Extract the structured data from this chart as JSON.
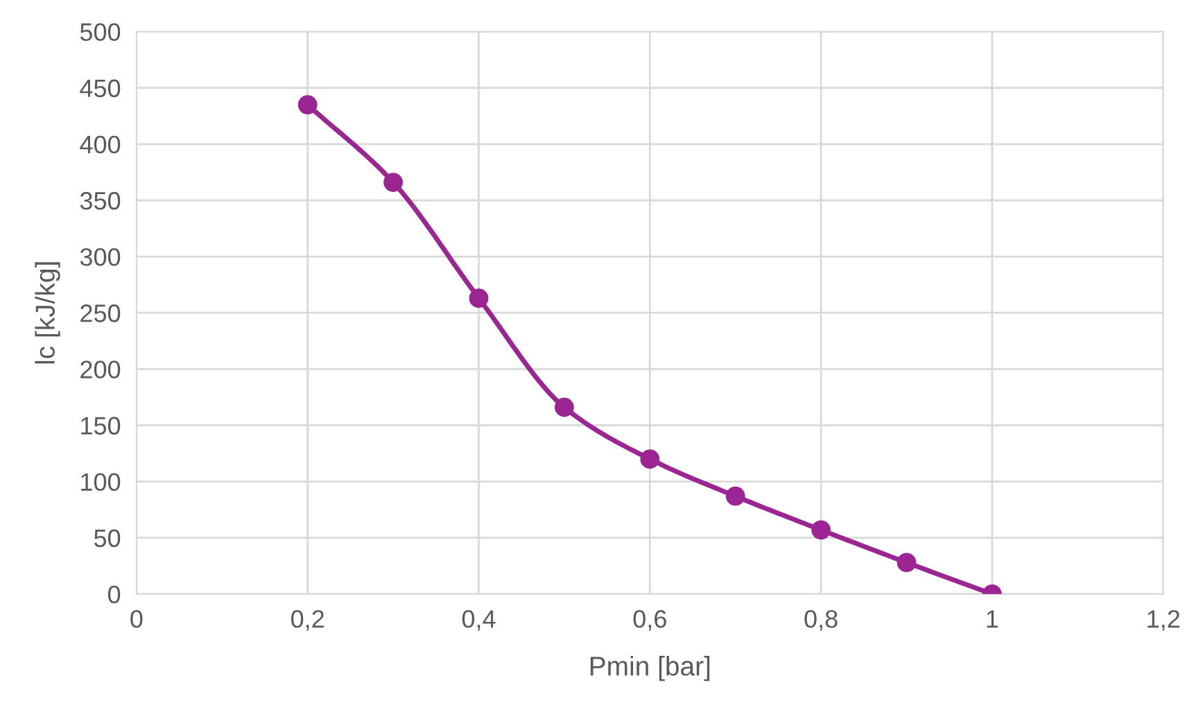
{
  "chart_data": {
    "type": "line",
    "xlabel": "Pmin [bar]",
    "ylabel": "lc [kJ/kg]",
    "x": [
      0.2,
      0.3,
      0.4,
      0.5,
      0.6,
      0.7,
      0.8,
      0.9,
      1.0
    ],
    "series": [
      {
        "color": "#9b2593",
        "values": [
          435,
          366,
          263,
          166,
          120,
          87,
          57,
          28,
          0
        ]
      }
    ],
    "xlim": [
      0,
      1.2
    ],
    "xticks": [
      0,
      {
        "value": 0.2,
        "label": "0,2"
      },
      {
        "value": 0.4,
        "label": "0,4"
      },
      {
        "value": 0.6,
        "label": "0,6"
      },
      {
        "value": 0.8,
        "label": "0,8"
      },
      1,
      {
        "value": 1.2,
        "label": "1,2"
      }
    ],
    "ylim": [
      0,
      500
    ],
    "yticks": [
      0,
      50,
      100,
      150,
      200,
      250,
      300,
      350,
      400,
      450,
      500
    ],
    "grid": true,
    "marker": "circle",
    "line_style": "solid"
  }
}
